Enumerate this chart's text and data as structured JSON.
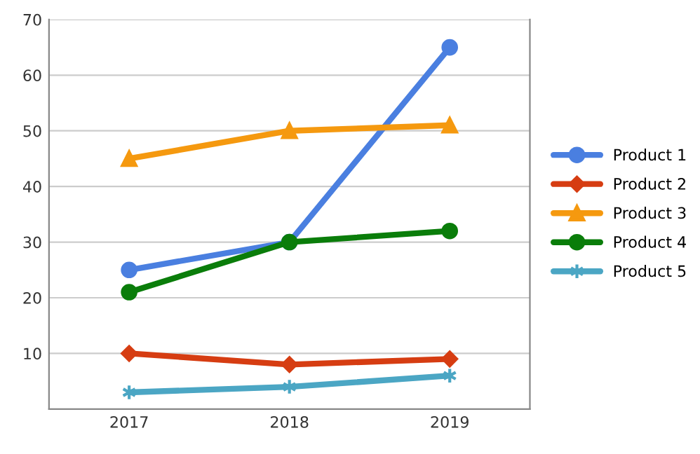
{
  "chart_data": {
    "type": "line",
    "categories": [
      "2017",
      "2018",
      "2019"
    ],
    "series": [
      {
        "name": "Product 1",
        "color": "#4a7fe0",
        "values": [
          25,
          30,
          65
        ],
        "marker": "circle"
      },
      {
        "name": "Product 2",
        "color": "#d63d12",
        "values": [
          10,
          8,
          9
        ],
        "marker": "diamond"
      },
      {
        "name": "Product 3",
        "color": "#f5990f",
        "values": [
          45,
          50,
          51
        ],
        "marker": "triangle"
      },
      {
        "name": "Product 4",
        "color": "#0a7d0a",
        "values": [
          21,
          30,
          32
        ],
        "marker": "circle"
      },
      {
        "name": "Product 5",
        "color": "#4ba6c4",
        "values": [
          3,
          4,
          6
        ],
        "marker": "cross"
      }
    ],
    "ylim": [
      0,
      70
    ],
    "yticks": [
      10,
      20,
      30,
      40,
      50,
      60,
      70
    ],
    "grid": "y",
    "legend": "right",
    "line_style": "solid"
  }
}
